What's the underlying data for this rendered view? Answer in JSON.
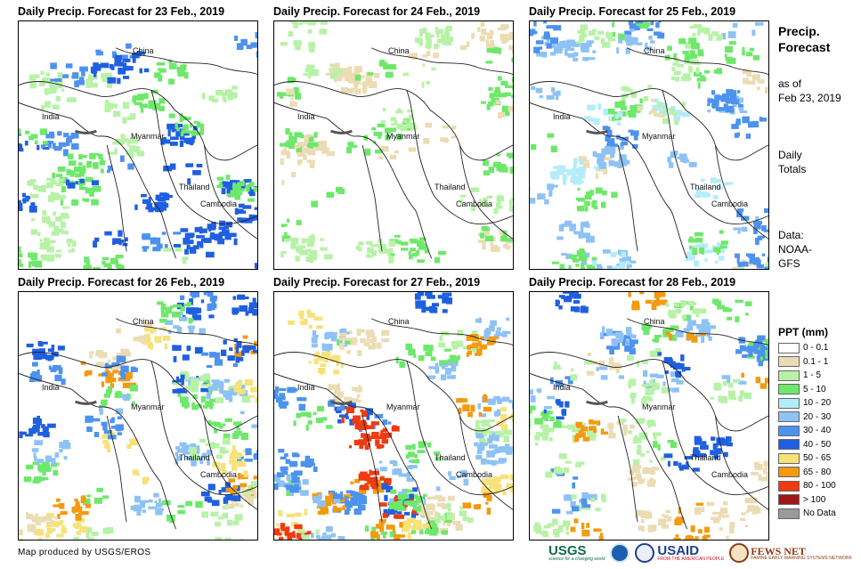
{
  "panels": [
    {
      "title": "Daily Precip. Forecast for 23 Feb., 2019",
      "labels": {
        "china": "China",
        "india": "India",
        "myanmar": "Myanmar",
        "thailand": "Thailand",
        "cambodia": "Cambodia"
      },
      "intensity": 0.55,
      "bands": [
        "1 - 5",
        "5 - 10",
        "30 - 40",
        "40 - 50"
      ]
    },
    {
      "title": "Daily Precip. Forecast for 24 Feb., 2019",
      "labels": {
        "china": "China",
        "india": "India",
        "myanmar": "Myanmar",
        "thailand": "Thailand",
        "cambodia": "Cambodia"
      },
      "intensity": 0.45,
      "bands": [
        "0.1 - 1",
        "1 - 5",
        "5 - 10"
      ]
    },
    {
      "title": "Daily Precip. Forecast for 25 Feb., 2019",
      "labels": {
        "china": "China",
        "india": "India",
        "myanmar": "Myanmar",
        "thailand": "Thailand",
        "cambodia": "Cambodia"
      },
      "intensity": 0.7,
      "bands": [
        "0.1 - 1",
        "1 - 5",
        "5 - 10",
        "10 - 20",
        "20 - 30",
        "30 - 40"
      ]
    },
    {
      "title": "Daily Precip. Forecast for 26 Feb., 2019",
      "labels": {
        "china": "China",
        "india": "India",
        "myanmar": "Myanmar",
        "thailand": "Thailand",
        "cambodia": "Cambodia"
      },
      "intensity": 0.85,
      "bands": [
        "0.1 - 1",
        "1 - 5",
        "5 - 10",
        "20 - 30",
        "30 - 40",
        "40 - 50",
        "50 - 65",
        "65 - 80"
      ]
    },
    {
      "title": "Daily Precip. Forecast for 27 Feb., 2019",
      "labels": {
        "china": "China",
        "india": "India",
        "myanmar": "Myanmar",
        "thailand": "Thailand",
        "cambodia": "Cambodia"
      },
      "intensity": 0.95,
      "bands": [
        "0.1 - 1",
        "1 - 5",
        "5 - 10",
        "20 - 30",
        "30 - 40",
        "40 - 50",
        "50 - 65",
        "65 - 80",
        "80 - 100"
      ]
    },
    {
      "title": "Daily Precip. Forecast for 28 Feb., 2019",
      "labels": {
        "china": "China",
        "india": "India",
        "myanmar": "Myanmar",
        "thailand": "Thailand",
        "cambodia": "Cambodia"
      },
      "intensity": 0.75,
      "bands": [
        "0.1 - 1",
        "1 - 5",
        "5 - 10",
        "20 - 30",
        "30 - 40",
        "40 - 50",
        "65 - 80"
      ]
    }
  ],
  "side": {
    "title_line1": "Precip.",
    "title_line2": "Forecast",
    "asof_line1": "as of",
    "asof_line2": "Feb 23, 2019",
    "totals_line1": "Daily",
    "totals_line2": "Totals",
    "data_line1": "Data:",
    "data_line2": "NOAA-",
    "data_line3": "GFS"
  },
  "legend": {
    "title": "PPT (mm)",
    "items": [
      {
        "label": "0 - 0.1",
        "color": "#ffffff"
      },
      {
        "label": "0.1 - 1",
        "color": "#ebdcb3"
      },
      {
        "label": "1 - 5",
        "color": "#b7f2a6"
      },
      {
        "label": "5 - 10",
        "color": "#6ee86a"
      },
      {
        "label": "10 - 20",
        "color": "#b4ecfa"
      },
      {
        "label": "20 - 30",
        "color": "#8ec2f5"
      },
      {
        "label": "30 - 40",
        "color": "#4d92ef"
      },
      {
        "label": "40 - 50",
        "color": "#1f5fe0"
      },
      {
        "label": "50 - 65",
        "color": "#f7e27a"
      },
      {
        "label": "65 - 80",
        "color": "#f39a10"
      },
      {
        "label": "80 - 100",
        "color": "#f03a10"
      },
      {
        "label": "> 100",
        "color": "#a0161a"
      },
      {
        "label": "No Data",
        "color": "#9a9a9a"
      }
    ]
  },
  "credit": "Map produced by USGS/EROS",
  "logos": {
    "usgs": "USGS",
    "usgs_tagline": "science for a changing world",
    "usaid": "USAID",
    "usaid_tagline": "FROM THE AMERICAN PEOPLE",
    "fews": "FEWS NET",
    "fews_tagline": "FAMINE EARLY WARNING SYSTEMS NETWORK"
  }
}
